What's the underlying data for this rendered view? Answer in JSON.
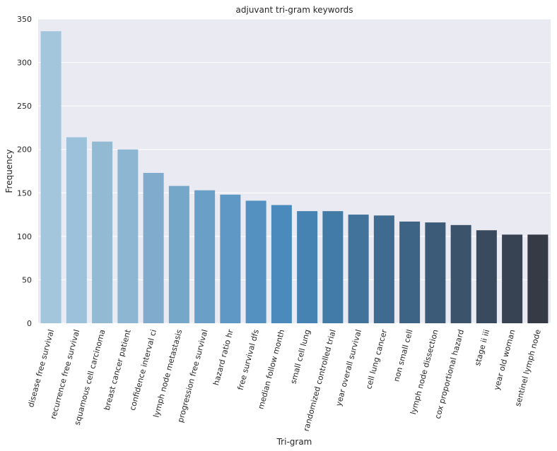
{
  "chart_data": {
    "type": "bar",
    "title": "adjuvant tri-gram keywords",
    "xlabel": "Tri-gram",
    "ylabel": "Frequency",
    "ylim": [
      0,
      350
    ],
    "yticks": [
      0,
      50,
      100,
      150,
      200,
      250,
      300,
      350
    ],
    "grid": true,
    "categories": [
      "disease free survival",
      "recurrence free survival",
      "squamous cell carcinoma",
      "breast cancer patient",
      "confidence interval ci",
      "lymph node metastasis",
      "progression free survival",
      "hazard ratio hr",
      "free survival dfs",
      "median follow month",
      "small cell lung",
      "randomized controlled trial",
      "year overall survival",
      "cell lung cancer",
      "non small cell",
      "lymph node dissection",
      "cox proportional hazard",
      "stage ii iii",
      "year old woman",
      "sentinel lymph node"
    ],
    "values": [
      336,
      214,
      209,
      200,
      173,
      158,
      153,
      148,
      141,
      136,
      129,
      129,
      125,
      124,
      117,
      116,
      113,
      107,
      102,
      102
    ],
    "colors": [
      "#a3c6dc",
      "#9cc2db",
      "#93bad3",
      "#8db6d2",
      "#81abcd",
      "#75a7c9",
      "#6a9fc7",
      "#5f98c4",
      "#5591c0",
      "#4b8abd",
      "#4683b3",
      "#437ba7",
      "#41739b",
      "#3f6b90",
      "#3d6485",
      "#3c5b78",
      "#3b536b",
      "#394a5e",
      "#374252",
      "#353a45"
    ],
    "plot_background": "#eaeaf2",
    "grid_color": "#ffffff"
  }
}
